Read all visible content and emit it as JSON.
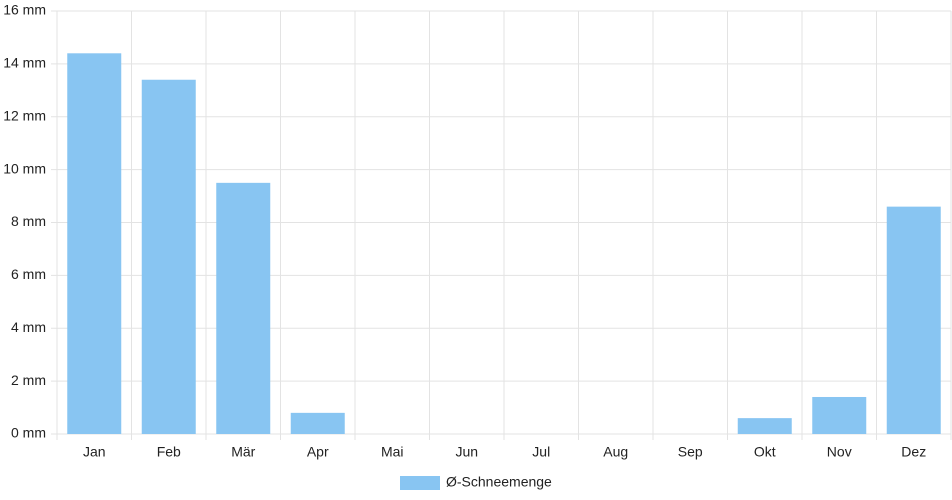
{
  "chart_data": {
    "type": "bar",
    "categories": [
      "Jan",
      "Feb",
      "Mär",
      "Apr",
      "Mai",
      "Jun",
      "Jul",
      "Aug",
      "Sep",
      "Okt",
      "Nov",
      "Dez"
    ],
    "series": [
      {
        "name": "Ø-Schneemenge",
        "color": "#88c5f2",
        "values": [
          14.4,
          13.4,
          9.5,
          0.8,
          0,
          0,
          0,
          0,
          0,
          0.6,
          1.4,
          8.6
        ]
      }
    ],
    "ylim": [
      0,
      16
    ],
    "yticks": [
      {
        "value": 0,
        "label": "0 mm"
      },
      {
        "value": 2,
        "label": "2 mm"
      },
      {
        "value": 4,
        "label": "4 mm"
      },
      {
        "value": 6,
        "label": "6 mm"
      },
      {
        "value": 8,
        "label": "8 mm"
      },
      {
        "value": 10,
        "label": "10 mm"
      },
      {
        "value": 12,
        "label": "12 mm"
      },
      {
        "value": 14,
        "label": "14 mm"
      },
      {
        "value": 16,
        "label": "16 mm"
      }
    ],
    "grid": true,
    "legend": "bottom"
  }
}
